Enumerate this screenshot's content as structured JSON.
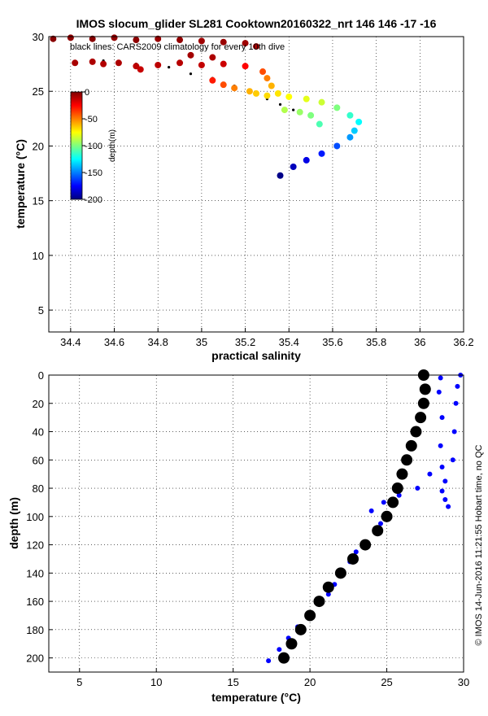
{
  "figure": {
    "title": "IMOS slocum_glider SL281 Cooktown20160322_nrt 146  146  -17  -16",
    "credit": "© IMOS 14-Jun-2016 11:21:55 Hobart time, no QC"
  },
  "chart_data": [
    {
      "type": "scatter",
      "title": "IMOS slocum_glider SL281 Cooktown20160322_nrt 146  146  -17  -16",
      "xlabel": "practical salinity",
      "ylabel": "temperature (°C)",
      "xlim": [
        34.3,
        36.2
      ],
      "ylim": [
        3,
        30
      ],
      "xticks": [
        "34.4",
        "34.6",
        "34.8",
        "35",
        "35.2",
        "35.4",
        "35.6",
        "35.8",
        "36",
        "36.2"
      ],
      "yticks": [
        "5",
        "10",
        "15",
        "20",
        "25",
        "30"
      ],
      "grid": true,
      "annotation": "black lines: CARS2009 climatology for every 10th dive",
      "colorbar": {
        "label": "depth(m)",
        "ticks": [
          "0",
          "-50",
          "-100",
          "-150",
          "-200"
        ],
        "range": [
          -200,
          0
        ],
        "colors": [
          "#00007f",
          "#0000ff",
          "#007fff",
          "#00ffff",
          "#7fff7f",
          "#ffff00",
          "#ff7f00",
          "#ff0000",
          "#7f0000"
        ],
        "placement": "upper-left"
      },
      "series": [
        {
          "color": "depth-colormap",
          "points": [
            [
              34.32,
              29.8,
              -2
            ],
            [
              34.4,
              29.9,
              -3
            ],
            [
              34.5,
              29.8,
              -2
            ],
            [
              34.6,
              29.9,
              -4
            ],
            [
              34.7,
              29.7,
              -3
            ],
            [
              34.8,
              29.8,
              -5
            ],
            [
              34.9,
              29.7,
              -4
            ],
            [
              35.0,
              29.6,
              -6
            ],
            [
              35.1,
              29.5,
              -5
            ],
            [
              35.2,
              29.4,
              -6
            ],
            [
              35.25,
              29.1,
              -8
            ],
            [
              34.42,
              27.6,
              -8
            ],
            [
              34.5,
              27.7,
              -9
            ],
            [
              34.55,
              27.5,
              -10
            ],
            [
              34.62,
              27.6,
              -9
            ],
            [
              34.7,
              27.3,
              -12
            ],
            [
              34.72,
              27.0,
              -14
            ],
            [
              34.8,
              27.4,
              -12
            ],
            [
              34.9,
              27.6,
              -11
            ],
            [
              35.0,
              27.4,
              -13
            ],
            [
              34.95,
              28.3,
              -7
            ],
            [
              35.05,
              28.1,
              -9
            ],
            [
              35.1,
              27.5,
              -15
            ],
            [
              35.2,
              27.3,
              -25
            ],
            [
              35.28,
              26.8,
              -40
            ],
            [
              35.3,
              26.2,
              -50
            ],
            [
              35.32,
              25.5,
              -60
            ],
            [
              35.35,
              24.8,
              -70
            ],
            [
              35.4,
              24.5,
              -75
            ],
            [
              35.48,
              24.3,
              -80
            ],
            [
              35.55,
              24.0,
              -85
            ],
            [
              35.62,
              23.5,
              -100
            ],
            [
              35.68,
              22.8,
              -115
            ],
            [
              35.72,
              22.2,
              -125
            ],
            [
              35.7,
              21.4,
              -135
            ],
            [
              35.68,
              20.8,
              -145
            ],
            [
              35.62,
              20.0,
              -160
            ],
            [
              35.55,
              19.3,
              -170
            ],
            [
              35.48,
              18.7,
              -180
            ],
            [
              35.42,
              18.1,
              -188
            ],
            [
              35.36,
              17.3,
              -198
            ],
            [
              35.38,
              23.3,
              -90
            ],
            [
              35.45,
              23.1,
              -95
            ],
            [
              35.5,
              22.8,
              -100
            ],
            [
              35.54,
              22.0,
              -110
            ],
            [
              35.05,
              26.0,
              -30
            ],
            [
              35.1,
              25.6,
              -40
            ],
            [
              35.15,
              25.3,
              -50
            ],
            [
              35.22,
              25.0,
              -60
            ],
            [
              35.25,
              24.8,
              -65
            ],
            [
              35.3,
              24.6,
              -68
            ]
          ]
        },
        {
          "name": "",
          "color": "#000000",
          "points": [
            [
              34.55,
              27.8
            ],
            [
              34.7,
              27.5
            ],
            [
              34.85,
              27.2
            ],
            [
              34.95,
              26.6
            ],
            [
              35.05,
              26.2
            ],
            [
              35.15,
              25.5
            ],
            [
              35.22,
              25.0
            ],
            [
              35.3,
              24.3
            ],
            [
              35.36,
              23.8
            ],
            [
              35.42,
              23.3
            ],
            [
              35.45,
              23.0
            ]
          ]
        }
      ]
    },
    {
      "type": "scatter",
      "xlabel": "temperature (°C)",
      "ylabel": "depth (m)",
      "xlim": [
        3,
        30
      ],
      "ylim": [
        210,
        0
      ],
      "xticks": [
        "5",
        "10",
        "15",
        "20",
        "25",
        "30"
      ],
      "yticks": [
        "0",
        "20",
        "40",
        "60",
        "80",
        "100",
        "120",
        "140",
        "160",
        "180",
        "200"
      ],
      "grid": true,
      "series": [
        {
          "color": "#0000ff",
          "points": [
            [
              29.8,
              0
            ],
            [
              28.5,
              2
            ],
            [
              29.6,
              8
            ],
            [
              28.4,
              12
            ],
            [
              29.5,
              20
            ],
            [
              28.6,
              30
            ],
            [
              29.4,
              40
            ],
            [
              28.5,
              50
            ],
            [
              29.3,
              60
            ],
            [
              28.6,
              65
            ],
            [
              27.8,
              70
            ],
            [
              28.8,
              75
            ],
            [
              27.0,
              80
            ],
            [
              28.6,
              82
            ],
            [
              25.8,
              85
            ],
            [
              28.8,
              88
            ],
            [
              24.8,
              90
            ],
            [
              29.0,
              93
            ],
            [
              24.0,
              96
            ],
            [
              25.0,
              100
            ],
            [
              24.6,
              105
            ],
            [
              24.2,
              110
            ],
            [
              23.6,
              118
            ],
            [
              23.0,
              125
            ],
            [
              22.6,
              132
            ],
            [
              22.0,
              140
            ],
            [
              21.6,
              148
            ],
            [
              21.2,
              155
            ],
            [
              20.6,
              162
            ],
            [
              20.0,
              170
            ],
            [
              19.2,
              178
            ],
            [
              18.6,
              186
            ],
            [
              18.0,
              194
            ],
            [
              17.3,
              202
            ]
          ]
        },
        {
          "color": "#000000",
          "points": [
            [
              27.4,
              0
            ],
            [
              27.5,
              10
            ],
            [
              27.4,
              20
            ],
            [
              27.2,
              30
            ],
            [
              26.9,
              40
            ],
            [
              26.6,
              50
            ],
            [
              26.3,
              60
            ],
            [
              26.0,
              70
            ],
            [
              25.7,
              80
            ],
            [
              25.4,
              90
            ],
            [
              25.0,
              100
            ],
            [
              24.4,
              110
            ],
            [
              23.6,
              120
            ],
            [
              22.8,
              130
            ],
            [
              22.0,
              140
            ],
            [
              21.2,
              150
            ],
            [
              20.6,
              160
            ],
            [
              20.0,
              170
            ],
            [
              19.4,
              180
            ],
            [
              18.8,
              190
            ],
            [
              18.3,
              200
            ]
          ]
        }
      ]
    }
  ]
}
